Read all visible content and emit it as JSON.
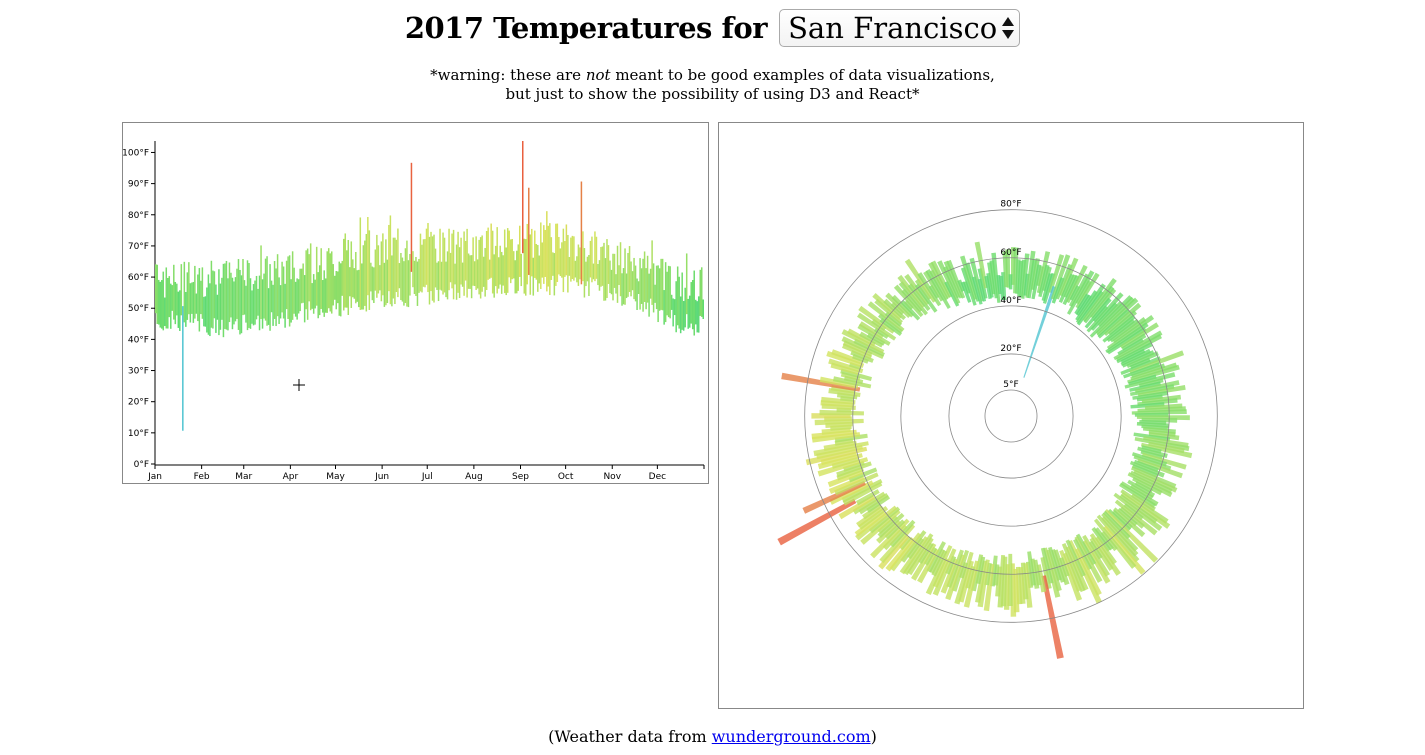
{
  "header": {
    "title_prefix": "2017 Temperatures for",
    "city_select": {
      "selected": "San Francisco"
    }
  },
  "warning": {
    "line1_before": "*warning: these are ",
    "line1_em": "not",
    "line1_after": " meant to be good examples of data visualizations,",
    "line2": "but just to show the possibility of using D3 and React*"
  },
  "footer": {
    "before": "(Weather data from ",
    "link_text": "wunderground.com",
    "after": ")"
  },
  "colors": {
    "cool": "#4fc3d6",
    "mild": "#5fdb6e",
    "warm": "#d9e35e",
    "hot": "#e9603f"
  },
  "chart_data": [
    {
      "type": "bar",
      "description_shown": "daily low-high range bars",
      "x_ticks": [
        "Jan",
        "Feb",
        "Mar",
        "Apr",
        "May",
        "Jun",
        "Jul",
        "Aug",
        "Sep",
        "Oct",
        "Nov",
        "Dec"
      ],
      "y_ticks": [
        "0°F",
        "10°F",
        "20°F",
        "30°F",
        "40°F",
        "50°F",
        "60°F",
        "70°F",
        "80°F",
        "90°F",
        "100°F"
      ],
      "ylim": [
        0,
        104
      ],
      "days": 365,
      "approx_monthly_low": [
        46,
        44,
        46,
        50,
        52,
        54,
        56,
        57,
        58,
        57,
        53,
        45
      ],
      "approx_monthly_high": [
        57,
        58,
        60,
        62,
        66,
        68,
        68,
        68,
        70,
        68,
        62,
        55
      ],
      "notable_days": [
        {
          "day": 18,
          "low": 11,
          "high": 51
        },
        {
          "day": 170,
          "low": 62,
          "high": 97
        },
        {
          "day": 244,
          "low": 68,
          "high": 104
        },
        {
          "day": 248,
          "low": 61,
          "high": 89
        },
        {
          "day": 283,
          "low": 58,
          "high": 91
        }
      ]
    },
    {
      "type": "radial-bar",
      "ring_labels": [
        "5°F",
        "20°F",
        "40°F",
        "60°F",
        "80°F"
      ],
      "ring_values": [
        5,
        20,
        40,
        60,
        80
      ],
      "outer_max": 104
    }
  ]
}
